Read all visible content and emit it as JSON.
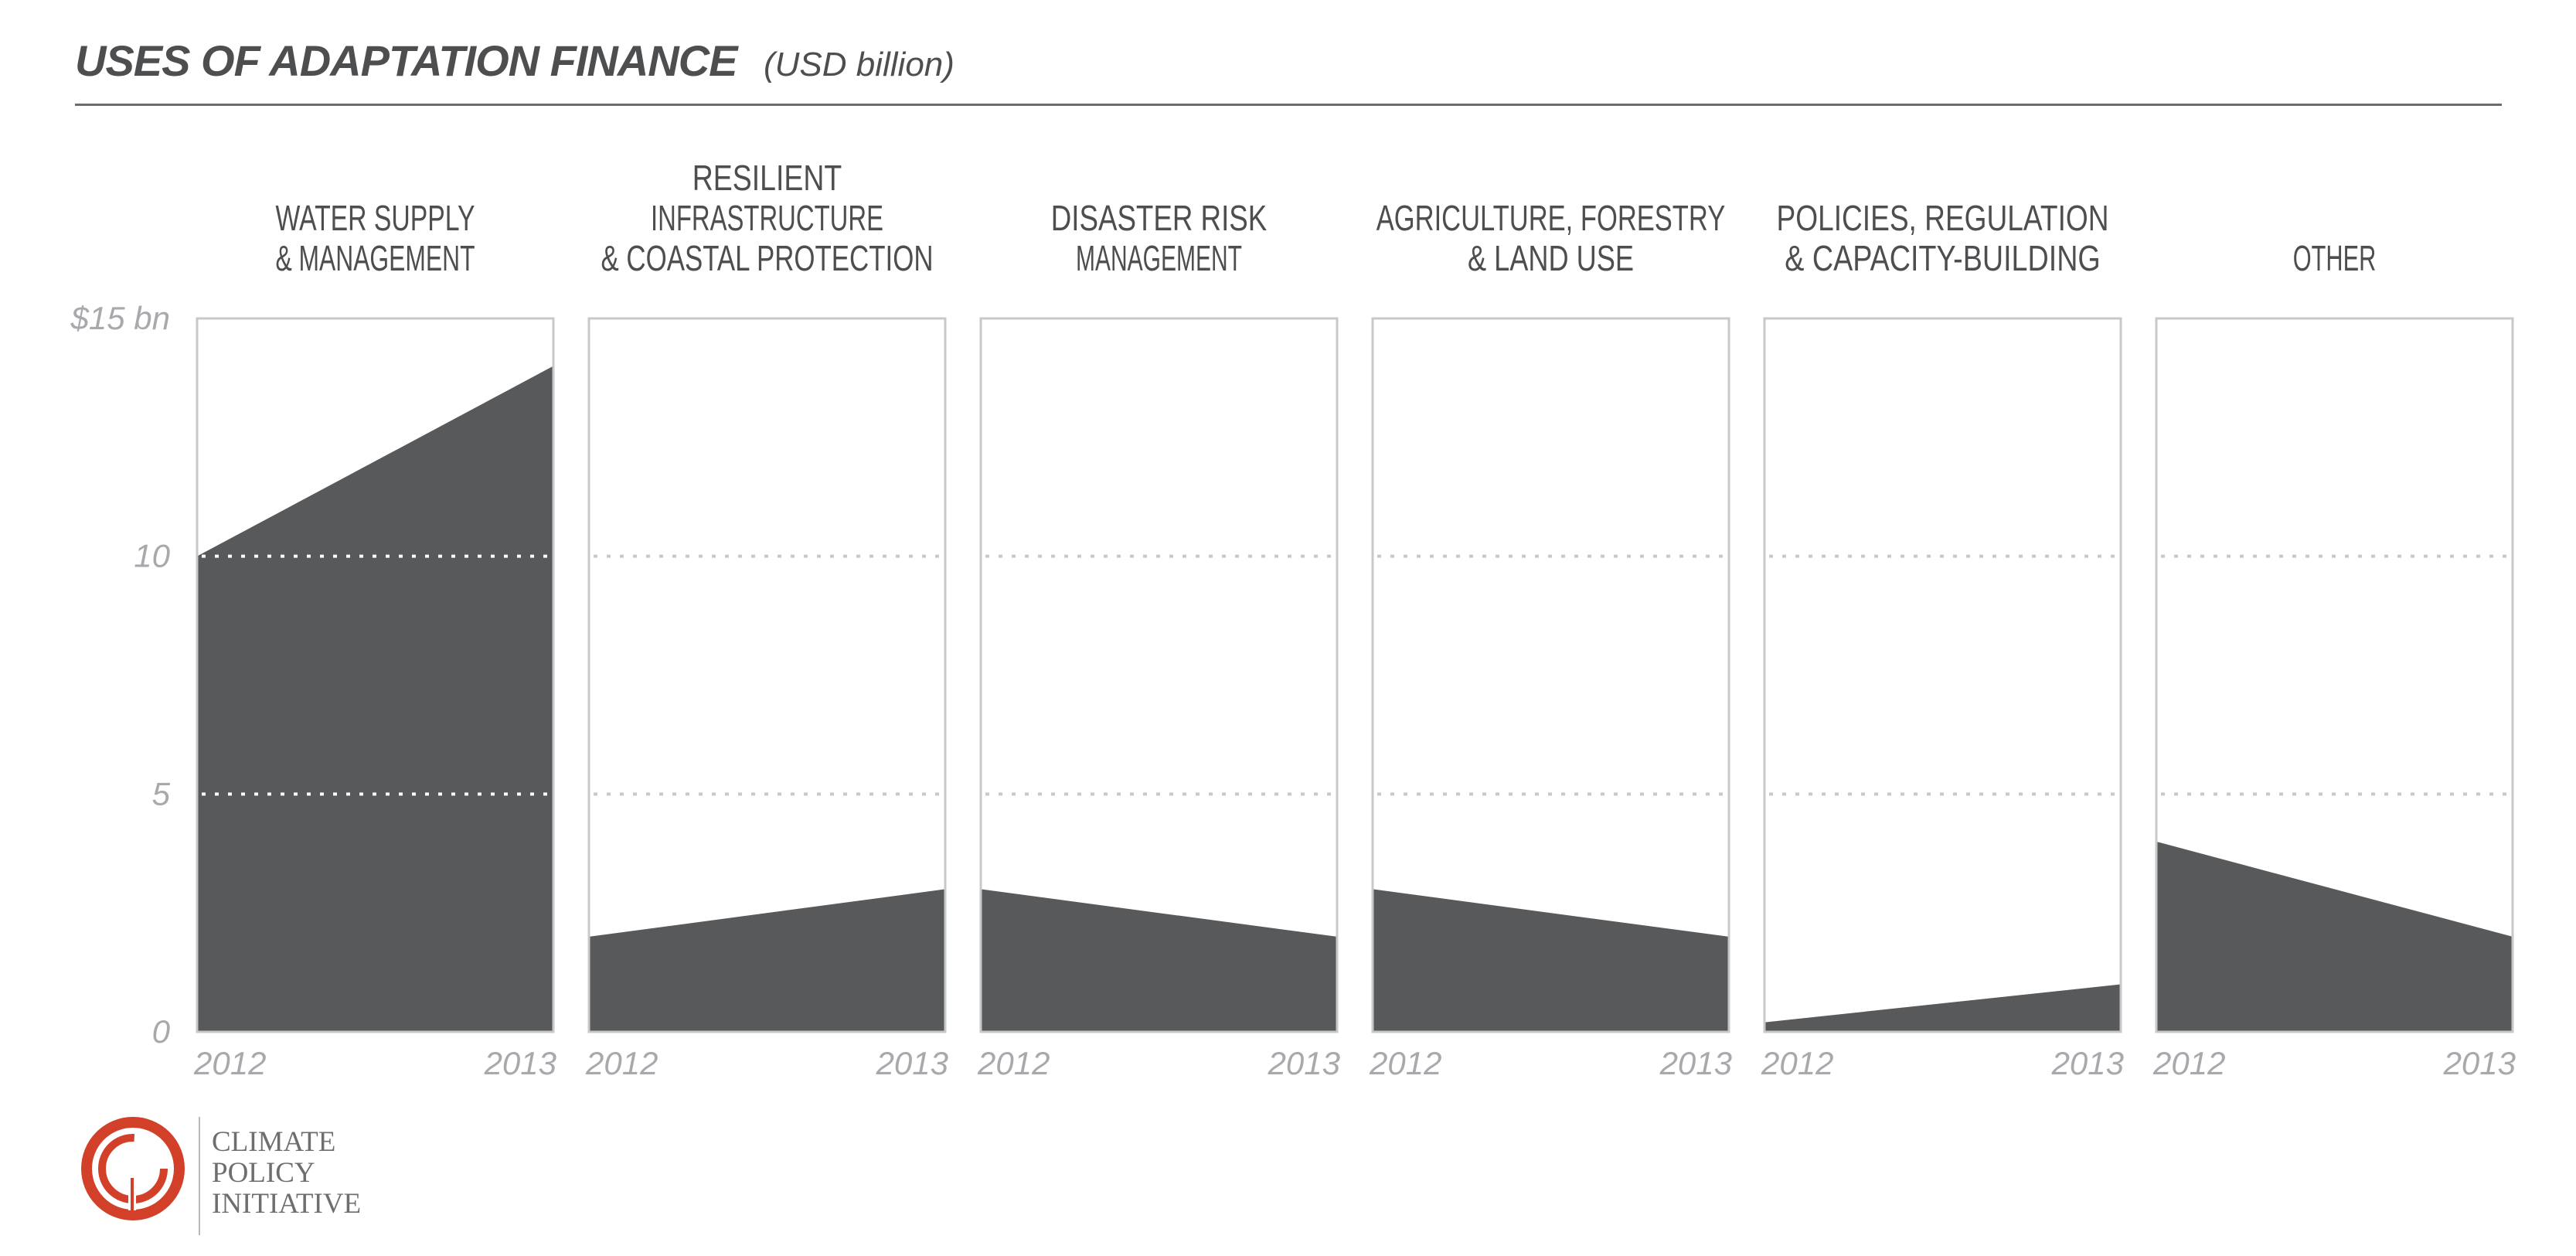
{
  "header": {
    "title": "USES OF ADAPTATION FINANCE",
    "subtitle": "(USD billion)"
  },
  "colors": {
    "fill": "#58595b",
    "panel_border": "#c7c8ca",
    "grid_light": "#c7c8ca",
    "grid_dark": "#ffffff",
    "axis_label": "#a7a9ac",
    "panel_title": "#4d4e50",
    "logo_red": "#d2402a"
  },
  "chart_data": {
    "type": "area",
    "y_tick_labels": [
      "0",
      "5",
      "10",
      "$15 bn"
    ],
    "y_ticks": [
      0,
      5,
      10,
      15
    ],
    "ylim": [
      0,
      15
    ],
    "x": [
      "2012",
      "2013"
    ],
    "grid": true,
    "panels": [
      {
        "name": [
          "WATER SUPPLY",
          "& MANAGEMENT"
        ],
        "values": [
          10,
          14
        ]
      },
      {
        "name": [
          "RESILIENT",
          "INFRASTRUCTURE",
          "& COASTAL PROTECTION"
        ],
        "values": [
          2,
          3
        ]
      },
      {
        "name": [
          "DISASTER RISK",
          "MANAGEMENT"
        ],
        "values": [
          3,
          2
        ]
      },
      {
        "name": [
          "AGRICULTURE, FORESTRY",
          "& LAND USE"
        ],
        "values": [
          3,
          2
        ]
      },
      {
        "name": [
          "POLICIES, REGULATION",
          "& CAPACITY-BUILDING"
        ],
        "values": [
          0.2,
          1
        ]
      },
      {
        "name": [
          "OTHER"
        ],
        "values": [
          4,
          2
        ]
      }
    ]
  },
  "logo": {
    "lines": [
      "CLIMATE",
      "POLICY",
      "INITIATIVE"
    ]
  }
}
